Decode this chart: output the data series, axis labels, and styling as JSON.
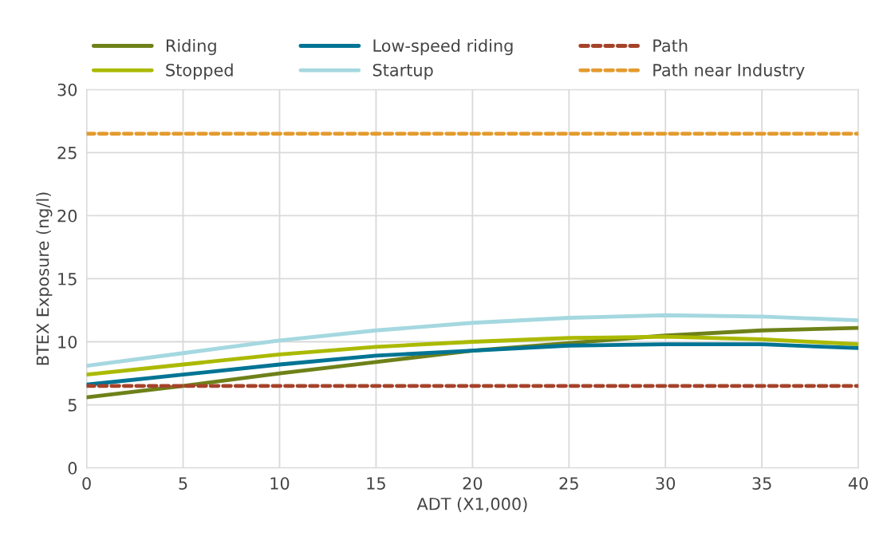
{
  "chart_data": {
    "type": "line",
    "xlabel": "ADT (X1,000)",
    "ylabel": "BTEX Exposure (ng/l)",
    "x": [
      0,
      5,
      10,
      15,
      20,
      25,
      30,
      35,
      40
    ],
    "xlim": [
      0,
      40
    ],
    "xticks": [
      0,
      5,
      10,
      15,
      20,
      25,
      30,
      35,
      40
    ],
    "ylim": [
      0,
      30
    ],
    "yticks": [
      0,
      5,
      10,
      15,
      20,
      25,
      30
    ],
    "grid": true,
    "legend": "top",
    "marker": "none",
    "series": [
      {
        "name": "Riding",
        "color": "#6e8119",
        "values": [
          5.6,
          6.5,
          7.5,
          8.4,
          9.3,
          9.9,
          10.5,
          10.9,
          11.1
        ]
      },
      {
        "name": "Stopped",
        "color": "#abba00",
        "values": [
          7.4,
          8.2,
          9.0,
          9.6,
          10.0,
          10.3,
          10.4,
          10.2,
          9.8
        ]
      },
      {
        "name": "Low-speed riding",
        "color": "#007494",
        "values": [
          6.6,
          7.4,
          8.2,
          8.9,
          9.3,
          9.7,
          9.8,
          9.8,
          9.5
        ]
      },
      {
        "name": "Startup",
        "color": "#a5d8e0",
        "values": [
          8.1,
          9.1,
          10.1,
          10.9,
          11.5,
          11.9,
          12.1,
          12.0,
          11.7
        ]
      },
      {
        "name": "Path",
        "color": "#a5432a",
        "line_style": "dashed",
        "values": [
          6.5,
          6.5,
          6.5,
          6.5,
          6.5,
          6.5,
          6.5,
          6.5,
          6.5
        ]
      },
      {
        "name": "Path near Industry",
        "color": "#e39b2f",
        "line_style": "dashed",
        "values": [
          26.5,
          26.5,
          26.5,
          26.5,
          26.5,
          26.5,
          26.5,
          26.5,
          26.5
        ]
      }
    ]
  }
}
